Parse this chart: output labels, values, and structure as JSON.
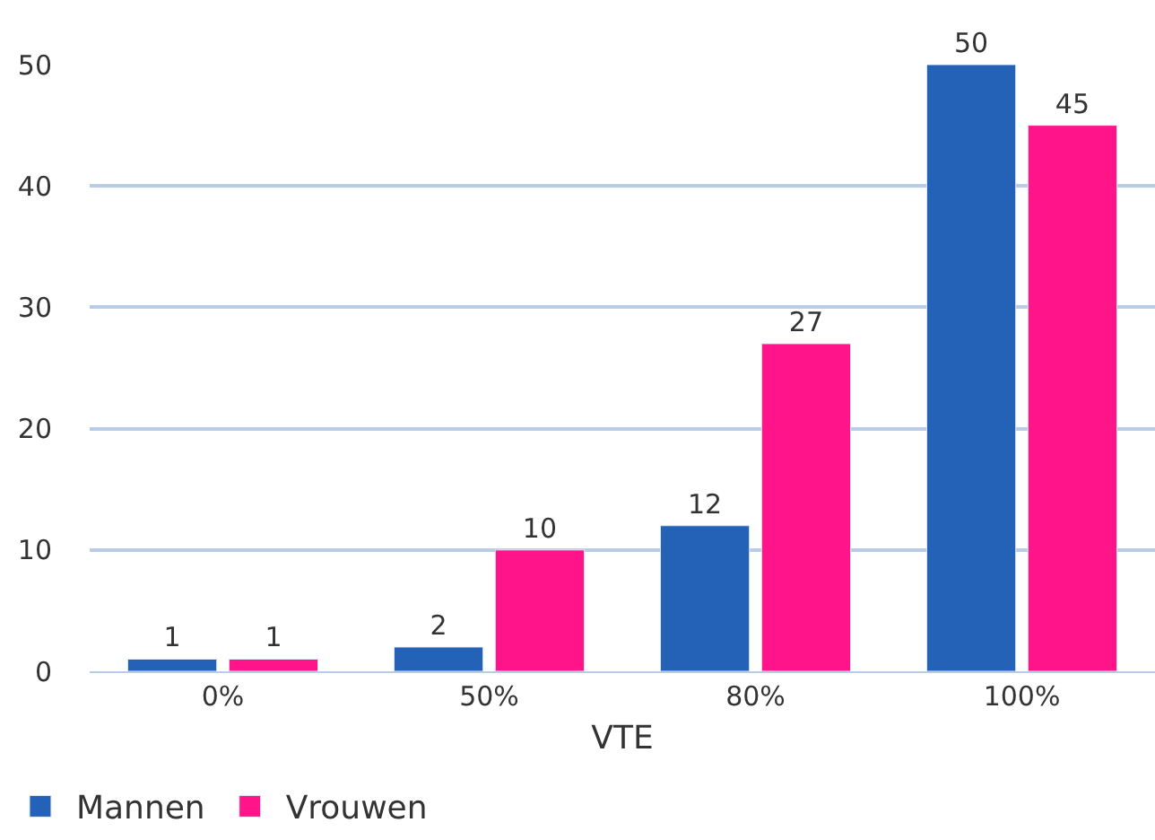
{
  "chart_data": {
    "type": "bar",
    "xlabel": "VTE",
    "categories": [
      "0%",
      "50%",
      "80%",
      "100%"
    ],
    "series": [
      {
        "name": "Mannen",
        "color": "#2462b8",
        "values": [
          1,
          2,
          12,
          50
        ]
      },
      {
        "name": "Vrouwen",
        "color": "#ff1489",
        "values": [
          1,
          10,
          27,
          45
        ]
      }
    ],
    "ylim": [
      0,
      50
    ],
    "yticks": [
      0,
      10,
      20,
      30,
      40,
      50
    ],
    "grid": "y",
    "legend": "bottom left",
    "data_labels": true
  }
}
